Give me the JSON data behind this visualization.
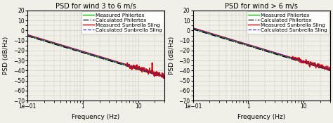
{
  "plot1": {
    "title": "PSD for wind 3 to 6 m/s",
    "xlim": [
      0.1,
      30
    ],
    "ylim": [
      -70,
      20
    ],
    "yticks": [
      -70,
      -60,
      -50,
      -40,
      -30,
      -20,
      -10,
      0,
      10,
      20
    ],
    "ylabel": "PSD (dB/Hz)",
    "xlabel": "Frequency (Hz)"
  },
  "plot2": {
    "title": "PSD for wind > 6 m/s",
    "xlim": [
      0.1,
      30
    ],
    "ylim": [
      -70,
      20
    ],
    "yticks": [
      -70,
      -60,
      -50,
      -40,
      -30,
      -20,
      -10,
      0,
      10,
      20
    ],
    "ylabel": "PSD (dB/Hz)",
    "xlabel": "Frequency (Hz)"
  },
  "legend": [
    {
      "label": "Measured Philertex",
      "color": "#00bb00",
      "ls": "-",
      "lw": 1.0
    },
    {
      "label": "Calculated Philertex",
      "color": "#000000",
      "ls": "-.",
      "lw": 0.9
    },
    {
      "label": "Measured Sunbrella Sling",
      "color": "#cc0000",
      "ls": "-",
      "lw": 1.0
    },
    {
      "label": "Calculated Sunbrella Sling",
      "color": "#3333cc",
      "ls": "--",
      "lw": 0.9
    }
  ],
  "bg_color": "#f0f0e8",
  "grid_color": "#888888",
  "title_fontsize": 7.0,
  "label_fontsize": 6.5,
  "tick_fontsize": 5.5,
  "legend_fontsize": 5.2
}
